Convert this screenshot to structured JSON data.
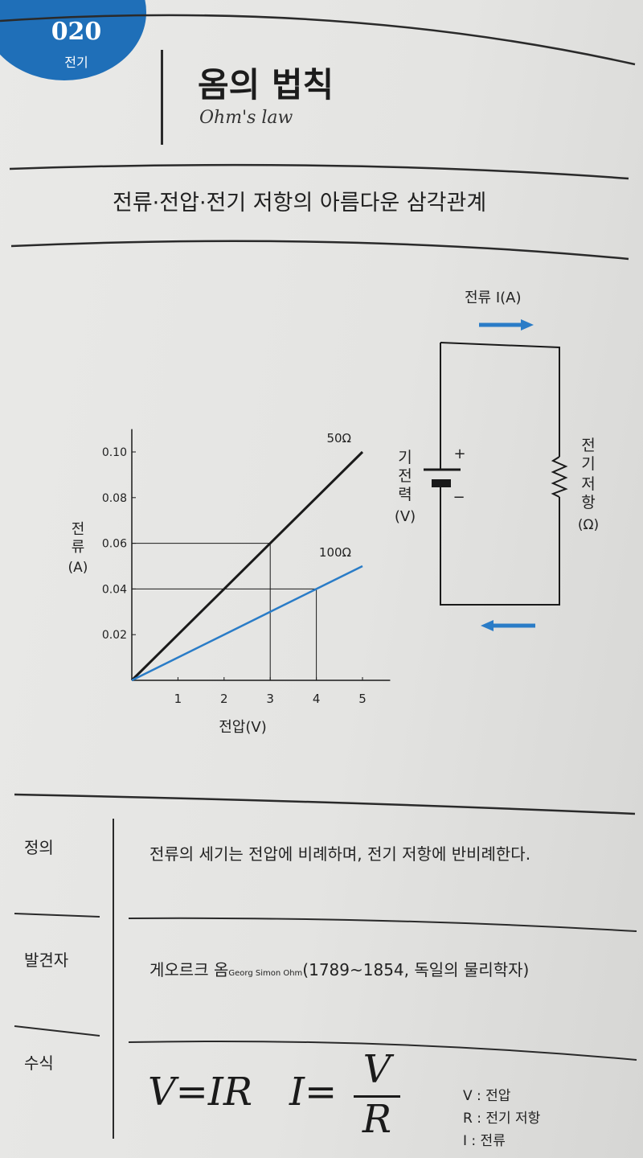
{
  "badge": {
    "number": "020",
    "category": "전기"
  },
  "title": {
    "korean": "옴의 법칙",
    "english": "Ohm's law"
  },
  "subtitle": "전류·전압·전기 저항의 아름다운 삼각관계",
  "chart_data": {
    "type": "line",
    "x": [
      0,
      1,
      2,
      3,
      4,
      5
    ],
    "series": [
      {
        "name": "50Ω",
        "values": [
          0,
          0.02,
          0.04,
          0.06,
          0.08,
          0.1
        ],
        "color": "#1a1a1a"
      },
      {
        "name": "100Ω",
        "values": [
          0,
          0.01,
          0.02,
          0.03,
          0.04,
          0.05
        ],
        "color": "#2a7cc7"
      }
    ],
    "xticks": [
      "1",
      "2",
      "3",
      "4",
      "5"
    ],
    "yticks": [
      "0.02",
      "0.04",
      "0.06",
      "0.08",
      "0.10"
    ],
    "xlabel": "전압(V)",
    "ylabel_chars": [
      "전",
      "류"
    ],
    "ylabel_unit": "(A)",
    "xlim": [
      0,
      5.6
    ],
    "ylim": [
      0,
      0.11
    ],
    "guides": [
      {
        "x": 3,
        "y": 0.06
      },
      {
        "x": 4,
        "y": 0.04
      }
    ]
  },
  "circuit": {
    "current_label": "전류 I(A)",
    "emf_chars": [
      "기",
      "전",
      "력"
    ],
    "emf_unit": "(V)",
    "plus": "+",
    "minus": "−",
    "resistance_chars": [
      "전",
      "기",
      "저",
      "항"
    ],
    "resistance_unit": "(Ω)"
  },
  "rows": {
    "definition": {
      "label": "정의",
      "text": "전류의 세기는 전압에 비례하며, 전기 저항에 반비례한다."
    },
    "discoverer": {
      "label": "발견자",
      "name_kr": "게오르크 옴",
      "name_en": "Georg Simon Ohm",
      "detail": "(1789~1854, 독일의 물리학자)"
    },
    "formula": {
      "label": "수식"
    }
  },
  "formulas": {
    "f1": "V=IR",
    "f2_left": "I=",
    "f2_num": "V",
    "f2_den": "R"
  },
  "legend": [
    "V : 전압",
    "R : 전기 저항",
    "I : 전류"
  ],
  "colors": {
    "accent": "#1f6fb8",
    "line_blue": "#2a7cc7",
    "line_black": "#1a1a1a"
  }
}
